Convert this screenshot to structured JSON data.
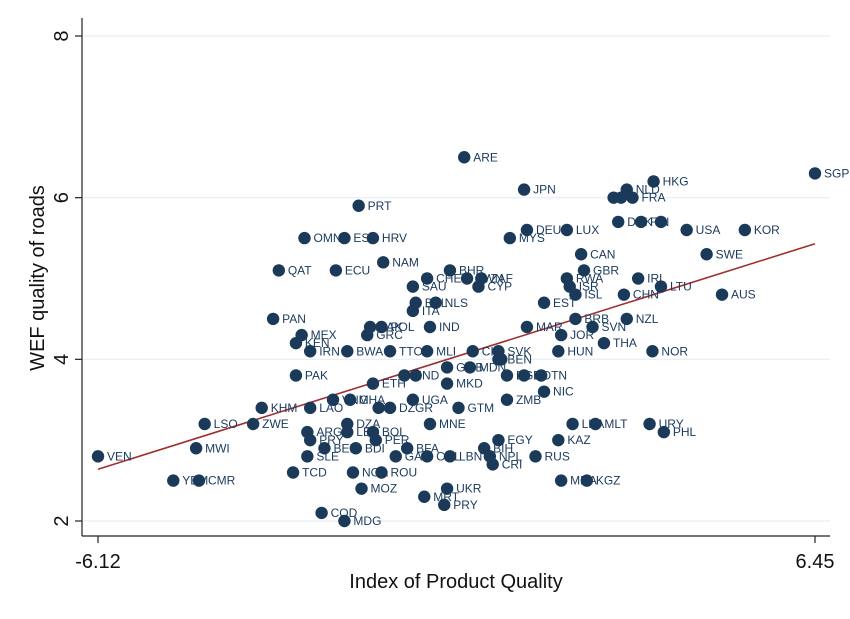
{
  "chart_data": {
    "type": "scatter",
    "title": "",
    "xlabel": "Index of Product Quality",
    "ylabel": "WEF quality of roads",
    "xlim": [
      -6.12,
      6.45
    ],
    "ylim": [
      2,
      8
    ],
    "xticks": [
      -6.12,
      6.45
    ],
    "xtick_labels": [
      "-6.12",
      "6.45"
    ],
    "yticks": [
      2,
      4,
      6,
      8
    ],
    "ytick_labels": [
      "2",
      "4",
      "6",
      "8"
    ],
    "grid": "horizontal",
    "legend": "none",
    "colors": {
      "marker": "#1b3a5a",
      "label": "#1a3a5c",
      "fit_line": "#a03030",
      "grid": "#e6edf2"
    },
    "fit_line": {
      "x": [
        -6.12,
        6.45
      ],
      "y": [
        2.64,
        5.43
      ]
    },
    "points": [
      {
        "label": "SGP",
        "x": 6.45,
        "y": 6.3
      },
      {
        "label": "ARE",
        "x": 0.3,
        "y": 6.5
      },
      {
        "label": "HKG",
        "x": 3.62,
        "y": 6.2
      },
      {
        "label": "NLD",
        "x": 3.15,
        "y": 6.1
      },
      {
        "label": "JPN",
        "x": 1.35,
        "y": 6.1
      },
      {
        "label": "FRA",
        "x": 3.25,
        "y": 6.0
      },
      {
        "label": "",
        "x": 2.92,
        "y": 6.0
      },
      {
        "label": "",
        "x": 3.05,
        "y": 6.0
      },
      {
        "label": "PRT",
        "x": -1.55,
        "y": 5.9
      },
      {
        "label": "DNK",
        "x": 3.0,
        "y": 5.7
      },
      {
        "label": "FIN",
        "x": 3.4,
        "y": 5.7
      },
      {
        "label": "",
        "x": 3.75,
        "y": 5.7
      },
      {
        "label": "USA",
        "x": 4.2,
        "y": 5.6
      },
      {
        "label": "KOR",
        "x": 5.22,
        "y": 5.6
      },
      {
        "label": "DEU",
        "x": 1.4,
        "y": 5.6
      },
      {
        "label": "LUX",
        "x": 2.1,
        "y": 5.6
      },
      {
        "label": "OMN",
        "x": -2.5,
        "y": 5.5
      },
      {
        "label": "ESP",
        "x": -1.8,
        "y": 5.5
      },
      {
        "label": "HRV",
        "x": -1.3,
        "y": 5.5
      },
      {
        "label": "MYS",
        "x": 1.1,
        "y": 5.5
      },
      {
        "label": "SWE",
        "x": 4.55,
        "y": 5.3
      },
      {
        "label": "CAN",
        "x": 2.35,
        "y": 5.3
      },
      {
        "label": "NAM",
        "x": -1.12,
        "y": 5.2
      },
      {
        "label": "QAT",
        "x": -2.95,
        "y": 5.1
      },
      {
        "label": "ECU",
        "x": -1.95,
        "y": 5.1
      },
      {
        "label": "BHR",
        "x": 0.05,
        "y": 5.1
      },
      {
        "label": "GBR",
        "x": 2.4,
        "y": 5.1
      },
      {
        "label": "CHE",
        "x": -0.35,
        "y": 5.0
      },
      {
        "label": "TWN",
        "x": 0.35,
        "y": 5.0
      },
      {
        "label": "ZAF",
        "x": 0.6,
        "y": 5.0
      },
      {
        "label": "RWA",
        "x": 2.1,
        "y": 5.0
      },
      {
        "label": "IRL",
        "x": 3.35,
        "y": 5.0
      },
      {
        "label": "SAU",
        "x": -0.6,
        "y": 4.9
      },
      {
        "label": "CYP",
        "x": 0.55,
        "y": 4.9
      },
      {
        "label": "ISR",
        "x": 2.15,
        "y": 4.9
      },
      {
        "label": "LTU",
        "x": 3.75,
        "y": 4.9
      },
      {
        "label": "ISL",
        "x": 2.25,
        "y": 4.8
      },
      {
        "label": "CHN",
        "x": 3.1,
        "y": 4.8
      },
      {
        "label": "AUS",
        "x": 4.82,
        "y": 4.8
      },
      {
        "label": "BEL",
        "x": -0.55,
        "y": 4.7
      },
      {
        "label": "NLS",
        "x": -0.2,
        "y": 4.7
      },
      {
        "label": "EST",
        "x": 1.7,
        "y": 4.7
      },
      {
        "label": "ITA",
        "x": -0.6,
        "y": 4.6
      },
      {
        "label": "PAN",
        "x": -3.05,
        "y": 4.5
      },
      {
        "label": "BRB",
        "x": 2.25,
        "y": 4.5
      },
      {
        "label": "NZL",
        "x": 3.15,
        "y": 4.5
      },
      {
        "label": "PAK",
        "x": -1.35,
        "y": 4.4
      },
      {
        "label": "POL",
        "x": -1.15,
        "y": 4.4
      },
      {
        "label": "IND",
        "x": -0.3,
        "y": 4.4
      },
      {
        "label": "MAR",
        "x": 1.4,
        "y": 4.4
      },
      {
        "label": "SVN",
        "x": 2.55,
        "y": 4.4
      },
      {
        "label": "MEX",
        "x": -2.55,
        "y": 4.3
      },
      {
        "label": "GRC",
        "x": -1.4,
        "y": 4.3
      },
      {
        "label": "JOR",
        "x": 2.0,
        "y": 4.3
      },
      {
        "label": "KEN",
        "x": -2.65,
        "y": 4.2
      },
      {
        "label": "THA",
        "x": 2.75,
        "y": 4.2
      },
      {
        "label": "IRN",
        "x": -2.4,
        "y": 4.1
      },
      {
        "label": "BWA",
        "x": -1.75,
        "y": 4.1
      },
      {
        "label": "TTO",
        "x": -1.0,
        "y": 4.1
      },
      {
        "label": "MLI",
        "x": -0.35,
        "y": 4.1
      },
      {
        "label": "CIV",
        "x": 0.45,
        "y": 4.1
      },
      {
        "label": "SVK",
        "x": 0.9,
        "y": 4.1
      },
      {
        "label": "HUN",
        "x": 1.95,
        "y": 4.1
      },
      {
        "label": "NOR",
        "x": 3.6,
        "y": 4.1
      },
      {
        "label": "BEN",
        "x": 0.9,
        "y": 4.0
      },
      {
        "label": "",
        "x": 0.95,
        "y": 4.0
      },
      {
        "label": "GMB",
        "x": 0.0,
        "y": 3.9
      },
      {
        "label": "MDN",
        "x": 0.4,
        "y": 3.9
      },
      {
        "label": "PAK",
        "x": -2.65,
        "y": 3.8
      },
      {
        "label": "HND",
        "x": -0.75,
        "y": 3.8
      },
      {
        "label": "",
        "x": -0.55,
        "y": 3.8
      },
      {
        "label": "BGD",
        "x": 1.05,
        "y": 3.8
      },
      {
        "label": "ROTN",
        "x": 1.35,
        "y": 3.8
      },
      {
        "label": "",
        "x": 1.65,
        "y": 3.8
      },
      {
        "label": "ETH",
        "x": -1.3,
        "y": 3.7
      },
      {
        "label": "MKD",
        "x": 0.0,
        "y": 3.7
      },
      {
        "label": "NIC",
        "x": 1.7,
        "y": 3.6
      },
      {
        "label": "ZMB",
        "x": 1.05,
        "y": 3.5
      },
      {
        "label": "VNM",
        "x": -2.0,
        "y": 3.5
      },
      {
        "label": "GHA",
        "x": -1.7,
        "y": 3.5
      },
      {
        "label": "UGA",
        "x": -0.6,
        "y": 3.5
      },
      {
        "label": "KHM",
        "x": -3.25,
        "y": 3.4
      },
      {
        "label": "LAO",
        "x": -2.4,
        "y": 3.4
      },
      {
        "label": "",
        "x": -1.2,
        "y": 3.4
      },
      {
        "label": "DZGR",
        "x": -1.0,
        "y": 3.4
      },
      {
        "label": "GTM",
        "x": 0.2,
        "y": 3.4
      },
      {
        "label": "LSO",
        "x": -4.25,
        "y": 3.2
      },
      {
        "label": "ZWE",
        "x": -3.4,
        "y": 3.2
      },
      {
        "label": "DZA",
        "x": -1.75,
        "y": 3.2
      },
      {
        "label": "MNE",
        "x": -0.3,
        "y": 3.2
      },
      {
        "label": "LKA",
        "x": 2.2,
        "y": 3.2
      },
      {
        "label": "MLT",
        "x": 2.6,
        "y": 3.2
      },
      {
        "label": "URY",
        "x": 3.55,
        "y": 3.2
      },
      {
        "label": "ARG",
        "x": -2.45,
        "y": 3.1
      },
      {
        "label": "LBR",
        "x": -1.75,
        "y": 3.1
      },
      {
        "label": "BOL",
        "x": -1.3,
        "y": 3.1
      },
      {
        "label": "PHL",
        "x": 3.8,
        "y": 3.1
      },
      {
        "label": "PRY",
        "x": -2.4,
        "y": 3.0
      },
      {
        "label": "PER",
        "x": -1.25,
        "y": 3.0
      },
      {
        "label": "EGY",
        "x": 0.9,
        "y": 3.0
      },
      {
        "label": "KAZ",
        "x": 1.95,
        "y": 3.0
      },
      {
        "label": "MWI",
        "x": -4.4,
        "y": 2.9
      },
      {
        "label": "BEN",
        "x": -2.15,
        "y": 2.9
      },
      {
        "label": "BDI",
        "x": -1.6,
        "y": 2.9
      },
      {
        "label": "BFA",
        "x": -0.7,
        "y": 2.9
      },
      {
        "label": "BIH",
        "x": 0.65,
        "y": 2.9
      },
      {
        "label": "VEN",
        "x": -6.12,
        "y": 2.8
      },
      {
        "label": "SLE",
        "x": -2.45,
        "y": 2.8
      },
      {
        "label": "GAB",
        "x": -0.9,
        "y": 2.8
      },
      {
        "label": "COL",
        "x": -0.35,
        "y": 2.8
      },
      {
        "label": "LBN",
        "x": 0.05,
        "y": 2.8
      },
      {
        "label": "NPL",
        "x": 0.75,
        "y": 2.8
      },
      {
        "label": "RUS",
        "x": 1.55,
        "y": 2.8
      },
      {
        "label": "CRI",
        "x": 0.8,
        "y": 2.7
      },
      {
        "label": "TCD",
        "x": -2.7,
        "y": 2.6
      },
      {
        "label": "NGA",
        "x": -1.65,
        "y": 2.6
      },
      {
        "label": "ROU",
        "x": -1.15,
        "y": 2.6
      },
      {
        "label": "YEM",
        "x": -4.8,
        "y": 2.5
      },
      {
        "label": "CMR",
        "x": -4.35,
        "y": 2.5
      },
      {
        "label": "MDA",
        "x": 2.0,
        "y": 2.5
      },
      {
        "label": "KGZ",
        "x": 2.45,
        "y": 2.5
      },
      {
        "label": "MOZ",
        "x": -1.5,
        "y": 2.4
      },
      {
        "label": "UKR",
        "x": 0.0,
        "y": 2.4
      },
      {
        "label": "MRT",
        "x": -0.4,
        "y": 2.3
      },
      {
        "label": "PRY",
        "x": -0.05,
        "y": 2.2
      },
      {
        "label": "COD",
        "x": -2.2,
        "y": 2.1
      },
      {
        "label": "MDG",
        "x": -1.8,
        "y": 2.0
      }
    ]
  }
}
